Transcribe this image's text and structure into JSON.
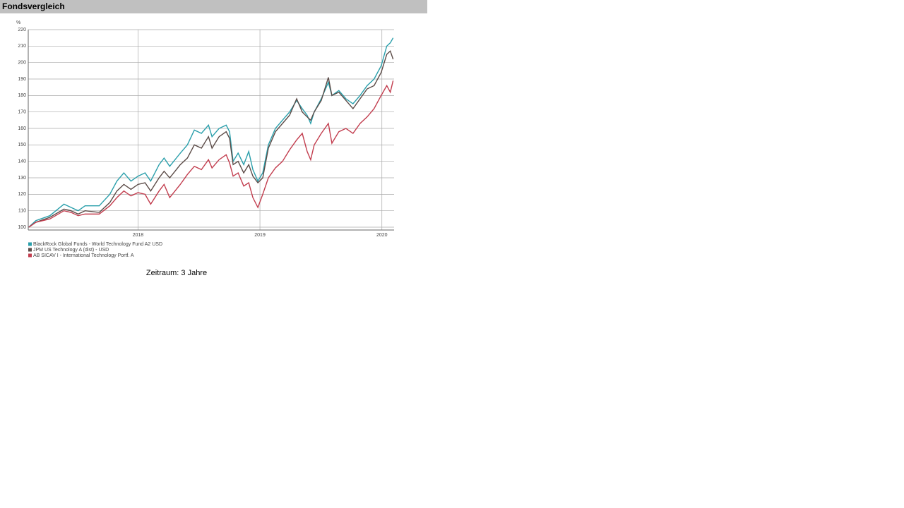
{
  "header": {
    "title": "Fondsvergleich"
  },
  "chart_data": {
    "type": "line",
    "ylabel": "%",
    "x": [
      2017.104,
      2017.162,
      2017.277,
      2017.393,
      2017.451,
      2017.509,
      2017.566,
      2017.682,
      2017.769,
      2017.827,
      2017.884,
      2017.942,
      2018.0,
      2018.058,
      2018.104,
      2018.173,
      2018.214,
      2018.26,
      2018.347,
      2018.405,
      2018.462,
      2018.52,
      2018.578,
      2018.607,
      2018.665,
      2018.723,
      2018.751,
      2018.78,
      2018.821,
      2018.867,
      2018.908,
      2018.942,
      2018.983,
      2019.023,
      2019.069,
      2019.127,
      2019.185,
      2019.243,
      2019.301,
      2019.347,
      2019.387,
      2019.416,
      2019.445,
      2019.503,
      2019.561,
      2019.59,
      2019.647,
      2019.705,
      2019.763,
      2019.821,
      2019.879,
      2019.936,
      2019.994,
      2020.04,
      2020.069,
      2020.092
    ],
    "series": [
      {
        "name": "BlackRock Global Funds - World Technology Fund A2 USD",
        "color": "#2a9fab",
        "values": [
          100,
          104,
          107,
          114,
          112,
          110,
          113,
          113,
          120,
          128,
          133,
          128,
          131,
          133,
          128,
          138,
          142,
          137,
          145,
          150,
          159,
          157,
          162,
          155,
          160,
          162,
          158,
          140,
          145,
          138,
          146,
          135,
          128,
          133,
          150,
          160,
          165,
          170,
          177,
          172,
          168,
          163,
          170,
          178,
          188,
          180,
          183,
          178,
          175,
          180,
          186,
          190,
          198,
          210,
          212,
          215
        ]
      },
      {
        "name": "JPM US Technology A (dist) - USD",
        "color": "#5b4b47",
        "values": [
          100,
          103,
          106,
          111,
          110,
          108,
          110,
          109,
          115,
          122,
          126,
          123,
          126,
          127,
          122,
          130,
          134,
          130,
          138,
          142,
          150,
          148,
          155,
          148,
          155,
          158,
          154,
          138,
          140,
          133,
          138,
          131,
          127,
          130,
          148,
          158,
          163,
          168,
          178,
          170,
          167,
          165,
          170,
          177,
          191,
          180,
          182,
          177,
          172,
          178,
          184,
          186,
          194,
          205,
          207,
          202
        ]
      },
      {
        "name": "AB SICAV I - International Technology Portf. A",
        "color": "#c23d4e",
        "values": [
          100,
          103,
          105,
          110,
          109,
          107,
          108,
          108,
          113,
          118,
          122,
          119,
          121,
          120,
          114,
          122,
          126,
          118,
          126,
          132,
          137,
          135,
          141,
          136,
          141,
          144,
          139,
          131,
          133,
          125,
          127,
          118,
          112,
          120,
          130,
          136,
          140,
          147,
          153,
          157,
          146,
          141,
          150,
          157,
          163,
          151,
          158,
          160,
          157,
          163,
          167,
          172,
          180,
          186,
          182,
          189
        ]
      }
    ],
    "xlim": [
      2017.1,
      2020.1
    ],
    "xticks": [
      2018,
      2019,
      2020
    ],
    "ylim": [
      98.3,
      220
    ],
    "yticks": [
      100,
      110,
      120,
      130,
      140,
      150,
      160,
      170,
      180,
      190,
      200,
      210,
      220
    ],
    "grid": true
  },
  "footer": {
    "period": "Zeitraum: 3 Jahre"
  }
}
